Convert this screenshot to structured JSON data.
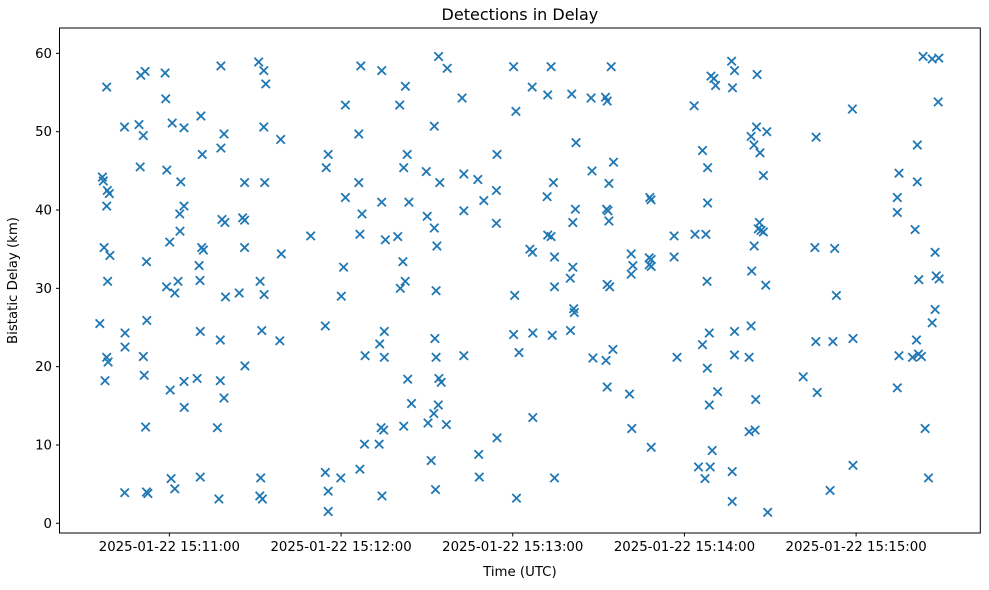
{
  "figure": {
    "title": "Detections in Delay",
    "xlabel": "Time (UTC)",
    "ylabel": "Bistatic Delay (km)"
  },
  "chart_data": {
    "type": "scatter",
    "title": "Detections in Delay",
    "xlabel": "Time (UTC)",
    "ylabel": "Bistatic Delay (km)",
    "marker": "x",
    "marker_color": "#1f77b4",
    "background": "#ffffff",
    "grid": false,
    "legend": null,
    "x_unit": "seconds after 2025-01-22 15:10:00 UTC",
    "xlim": [
      21.6,
      343.4
    ],
    "ylim": [
      -1.24,
      63.24
    ],
    "yticks": [
      0,
      10,
      20,
      30,
      40,
      50,
      60
    ],
    "xticks": [
      {
        "t": 60,
        "label": "2025-01-22 15:11:00"
      },
      {
        "t": 120,
        "label": "2025-01-22 15:12:00"
      },
      {
        "t": 180,
        "label": "2025-01-22 15:13:00"
      },
      {
        "t": 240,
        "label": "2025-01-22 15:14:00"
      },
      {
        "t": 300,
        "label": "2025-01-22 15:15:00"
      }
    ],
    "points": [
      [
        50.0,
        57.2
      ],
      [
        51.5,
        57.7
      ],
      [
        58.5,
        57.5
      ],
      [
        38.1,
        55.7
      ],
      [
        58.7,
        54.2
      ],
      [
        71.0,
        52.0
      ],
      [
        61.0,
        51.1
      ],
      [
        65.1,
        50.5
      ],
      [
        44.3,
        50.6
      ],
      [
        49.4,
        50.9
      ],
      [
        50.9,
        49.5
      ],
      [
        71.5,
        47.1
      ],
      [
        49.8,
        45.5
      ],
      [
        59.1,
        45.1
      ],
      [
        64.0,
        43.6
      ],
      [
        36.6,
        44.2
      ],
      [
        36.9,
        43.7
      ],
      [
        38.3,
        42.5
      ],
      [
        39.0,
        42.1
      ],
      [
        38.1,
        40.5
      ],
      [
        65.1,
        40.5
      ],
      [
        63.6,
        39.5
      ],
      [
        63.7,
        37.3
      ],
      [
        60.1,
        35.9
      ],
      [
        37.2,
        35.2
      ],
      [
        39.2,
        34.2
      ],
      [
        71.3,
        35.2
      ],
      [
        71.9,
        34.9
      ],
      [
        52.0,
        33.4
      ],
      [
        70.4,
        32.9
      ],
      [
        38.4,
        30.9
      ],
      [
        63.0,
        30.9
      ],
      [
        70.7,
        31.0
      ],
      [
        59.0,
        30.2
      ],
      [
        61.9,
        29.4
      ],
      [
        35.7,
        25.5
      ],
      [
        52.1,
        25.9
      ],
      [
        44.5,
        24.3
      ],
      [
        70.8,
        24.5
      ],
      [
        44.5,
        22.5
      ],
      [
        38.1,
        21.2
      ],
      [
        38.6,
        20.6
      ],
      [
        50.9,
        21.3
      ],
      [
        51.2,
        18.9
      ],
      [
        37.5,
        18.2
      ],
      [
        65.1,
        18.1
      ],
      [
        69.7,
        18.5
      ],
      [
        60.3,
        17.0
      ],
      [
        65.2,
        14.8
      ],
      [
        51.7,
        12.3
      ],
      [
        60.6,
        5.7
      ],
      [
        70.8,
        5.9
      ],
      [
        61.9,
        4.4
      ],
      [
        44.4,
        3.9
      ],
      [
        52.0,
        4.0
      ],
      [
        52.5,
        3.8
      ],
      [
        78.0,
        58.4
      ],
      [
        91.2,
        58.9
      ],
      [
        93.0,
        57.8
      ],
      [
        93.7,
        56.1
      ],
      [
        126.9,
        58.4
      ],
      [
        121.5,
        53.4
      ],
      [
        93.0,
        50.6
      ],
      [
        79.1,
        49.7
      ],
      [
        98.9,
        49.0
      ],
      [
        78.0,
        47.9
      ],
      [
        126.2,
        49.7
      ],
      [
        115.5,
        47.1
      ],
      [
        114.8,
        45.4
      ],
      [
        86.3,
        43.5
      ],
      [
        93.3,
        43.5
      ],
      [
        126.2,
        43.5
      ],
      [
        121.5,
        41.6
      ],
      [
        127.3,
        39.5
      ],
      [
        78.4,
        38.8
      ],
      [
        79.4,
        38.4
      ],
      [
        85.6,
        39.0
      ],
      [
        86.3,
        38.7
      ],
      [
        109.4,
        36.7
      ],
      [
        126.6,
        36.9
      ],
      [
        86.3,
        35.2
      ],
      [
        99.1,
        34.4
      ],
      [
        120.9,
        32.7
      ],
      [
        91.7,
        30.9
      ],
      [
        79.6,
        28.9
      ],
      [
        84.4,
        29.4
      ],
      [
        93.1,
        29.2
      ],
      [
        120.1,
        29.0
      ],
      [
        114.5,
        25.2
      ],
      [
        92.3,
        24.6
      ],
      [
        77.8,
        23.4
      ],
      [
        98.6,
        23.3
      ],
      [
        86.4,
        20.1
      ],
      [
        77.8,
        18.2
      ],
      [
        79.1,
        16.0
      ],
      [
        76.8,
        12.2
      ],
      [
        91.9,
        5.8
      ],
      [
        114.5,
        6.5
      ],
      [
        119.9,
        5.8
      ],
      [
        126.6,
        6.9
      ],
      [
        91.6,
        3.5
      ],
      [
        92.5,
        3.1
      ],
      [
        77.3,
        3.1
      ],
      [
        115.5,
        4.1
      ],
      [
        115.5,
        1.5
      ],
      [
        128.4,
        21.4
      ],
      [
        128.2,
        10.1
      ],
      [
        154.1,
        59.6
      ],
      [
        157.1,
        58.1
      ],
      [
        134.2,
        57.8
      ],
      [
        180.3,
        58.3
      ],
      [
        142.5,
        55.8
      ],
      [
        140.5,
        53.4
      ],
      [
        162.3,
        54.3
      ],
      [
        181.1,
        52.6
      ],
      [
        152.6,
        50.7
      ],
      [
        143.1,
        47.1
      ],
      [
        141.9,
        45.4
      ],
      [
        149.8,
        44.9
      ],
      [
        154.5,
        43.5
      ],
      [
        162.9,
        44.6
      ],
      [
        167.8,
        43.9
      ],
      [
        174.5,
        47.1
      ],
      [
        174.3,
        42.5
      ],
      [
        169.9,
        41.2
      ],
      [
        134.2,
        41.0
      ],
      [
        143.7,
        41.0
      ],
      [
        162.9,
        39.9
      ],
      [
        150.1,
        39.2
      ],
      [
        174.3,
        38.3
      ],
      [
        152.6,
        37.7
      ],
      [
        135.5,
        36.2
      ],
      [
        139.8,
        36.6
      ],
      [
        153.5,
        35.4
      ],
      [
        141.6,
        33.4
      ],
      [
        142.4,
        30.9
      ],
      [
        140.7,
        30.0
      ],
      [
        153.2,
        29.7
      ],
      [
        135.1,
        24.5
      ],
      [
        133.5,
        22.9
      ],
      [
        135.1,
        21.2
      ],
      [
        152.8,
        23.6
      ],
      [
        153.2,
        21.2
      ],
      [
        162.9,
        21.4
      ],
      [
        143.3,
        18.4
      ],
      [
        154.2,
        18.5
      ],
      [
        155.0,
        18.0
      ],
      [
        144.6,
        15.3
      ],
      [
        150.4,
        12.8
      ],
      [
        152.4,
        14.0
      ],
      [
        154.0,
        15.1
      ],
      [
        134.0,
        12.2
      ],
      [
        134.9,
        11.9
      ],
      [
        141.9,
        12.4
      ],
      [
        156.8,
        12.6
      ],
      [
        133.3,
        10.1
      ],
      [
        174.5,
        10.9
      ],
      [
        168.1,
        8.8
      ],
      [
        151.5,
        8.0
      ],
      [
        168.3,
        5.9
      ],
      [
        153.0,
        4.3
      ],
      [
        134.3,
        3.5
      ],
      [
        180.7,
        29.1
      ],
      [
        180.3,
        24.1
      ],
      [
        182.2,
        21.8
      ],
      [
        181.3,
        3.2
      ],
      [
        193.4,
        58.3
      ],
      [
        214.4,
        58.3
      ],
      [
        186.8,
        55.7
      ],
      [
        192.2,
        54.7
      ],
      [
        200.6,
        54.8
      ],
      [
        207.4,
        54.3
      ],
      [
        212.4,
        54.4
      ],
      [
        213.0,
        53.9
      ],
      [
        202.1,
        48.6
      ],
      [
        215.2,
        46.1
      ],
      [
        207.7,
        45.0
      ],
      [
        194.2,
        43.5
      ],
      [
        213.6,
        43.4
      ],
      [
        192.0,
        41.7
      ],
      [
        227.9,
        41.6
      ],
      [
        228.3,
        41.3
      ],
      [
        201.9,
        40.1
      ],
      [
        212.8,
        40.1
      ],
      [
        213.3,
        39.9
      ],
      [
        201.0,
        38.4
      ],
      [
        213.6,
        38.6
      ],
      [
        192.2,
        36.8
      ],
      [
        193.4,
        36.6
      ],
      [
        186.0,
        35.0
      ],
      [
        186.9,
        34.6
      ],
      [
        194.6,
        34.0
      ],
      [
        221.4,
        34.4
      ],
      [
        222.0,
        32.9
      ],
      [
        221.4,
        31.8
      ],
      [
        227.7,
        33.9
      ],
      [
        228.4,
        33.7
      ],
      [
        227.7,
        33.0
      ],
      [
        228.4,
        32.8
      ],
      [
        201.0,
        32.7
      ],
      [
        200.1,
        31.3
      ],
      [
        194.6,
        30.2
      ],
      [
        213.0,
        30.5
      ],
      [
        213.9,
        30.2
      ],
      [
        201.3,
        27.4
      ],
      [
        201.5,
        26.9
      ],
      [
        200.2,
        24.6
      ],
      [
        187.0,
        24.3
      ],
      [
        193.8,
        24.0
      ],
      [
        215.0,
        22.2
      ],
      [
        208.0,
        21.1
      ],
      [
        212.6,
        20.8
      ],
      [
        213.0,
        17.4
      ],
      [
        220.8,
        16.5
      ],
      [
        187.0,
        13.5
      ],
      [
        221.6,
        12.1
      ],
      [
        228.4,
        9.7
      ],
      [
        194.6,
        5.8
      ],
      [
        256.5,
        59.0
      ],
      [
        257.5,
        57.8
      ],
      [
        249.3,
        57.1
      ],
      [
        250.3,
        56.8
      ],
      [
        250.9,
        55.9
      ],
      [
        265.4,
        57.3
      ],
      [
        256.8,
        55.6
      ],
      [
        243.4,
        53.3
      ],
      [
        265.2,
        50.6
      ],
      [
        263.3,
        49.4
      ],
      [
        268.8,
        50.0
      ],
      [
        286.0,
        49.3
      ],
      [
        246.3,
        47.6
      ],
      [
        264.3,
        48.3
      ],
      [
        266.4,
        47.3
      ],
      [
        248.1,
        45.4
      ],
      [
        267.6,
        44.4
      ],
      [
        248.1,
        40.9
      ],
      [
        236.4,
        36.7
      ],
      [
        243.7,
        36.9
      ],
      [
        247.5,
        36.9
      ],
      [
        266.2,
        38.4
      ],
      [
        265.8,
        37.6
      ],
      [
        266.8,
        37.4
      ],
      [
        267.6,
        37.2
      ],
      [
        264.4,
        35.4
      ],
      [
        285.6,
        35.2
      ],
      [
        236.4,
        34.0
      ],
      [
        263.5,
        32.2
      ],
      [
        247.9,
        30.9
      ],
      [
        268.4,
        30.4
      ],
      [
        248.7,
        24.3
      ],
      [
        257.5,
        24.5
      ],
      [
        263.3,
        25.2
      ],
      [
        246.3,
        22.8
      ],
      [
        237.4,
        21.2
      ],
      [
        257.5,
        21.5
      ],
      [
        262.6,
        21.2
      ],
      [
        248.0,
        19.8
      ],
      [
        285.9,
        23.2
      ],
      [
        281.5,
        18.7
      ],
      [
        286.4,
        16.7
      ],
      [
        251.6,
        16.8
      ],
      [
        248.7,
        15.1
      ],
      [
        264.9,
        15.8
      ],
      [
        262.6,
        11.7
      ],
      [
        264.7,
        11.9
      ],
      [
        249.7,
        9.3
      ],
      [
        244.9,
        7.2
      ],
      [
        249.0,
        7.2
      ],
      [
        247.2,
        5.7
      ],
      [
        256.7,
        6.6
      ],
      [
        256.7,
        2.8
      ],
      [
        269.1,
        1.4
      ],
      [
        290.9,
        4.2
      ],
      [
        323.4,
        59.6
      ],
      [
        326.6,
        59.3
      ],
      [
        328.9,
        59.4
      ],
      [
        328.7,
        53.8
      ],
      [
        298.7,
        52.9
      ],
      [
        321.4,
        48.3
      ],
      [
        315.0,
        44.7
      ],
      [
        321.4,
        43.6
      ],
      [
        314.4,
        41.6
      ],
      [
        314.4,
        39.7
      ],
      [
        320.6,
        37.5
      ],
      [
        292.5,
        35.1
      ],
      [
        327.6,
        34.6
      ],
      [
        321.9,
        31.1
      ],
      [
        328.0,
        31.6
      ],
      [
        329.0,
        31.2
      ],
      [
        293.1,
        29.1
      ],
      [
        327.6,
        27.3
      ],
      [
        326.6,
        25.6
      ],
      [
        291.9,
        23.2
      ],
      [
        298.9,
        23.6
      ],
      [
        321.1,
        23.4
      ],
      [
        315.0,
        21.4
      ],
      [
        319.7,
        21.2
      ],
      [
        321.8,
        21.6
      ],
      [
        322.8,
        21.3
      ],
      [
        314.4,
        17.3
      ],
      [
        324.1,
        12.1
      ],
      [
        298.9,
        7.4
      ],
      [
        325.3,
        5.8
      ]
    ]
  }
}
